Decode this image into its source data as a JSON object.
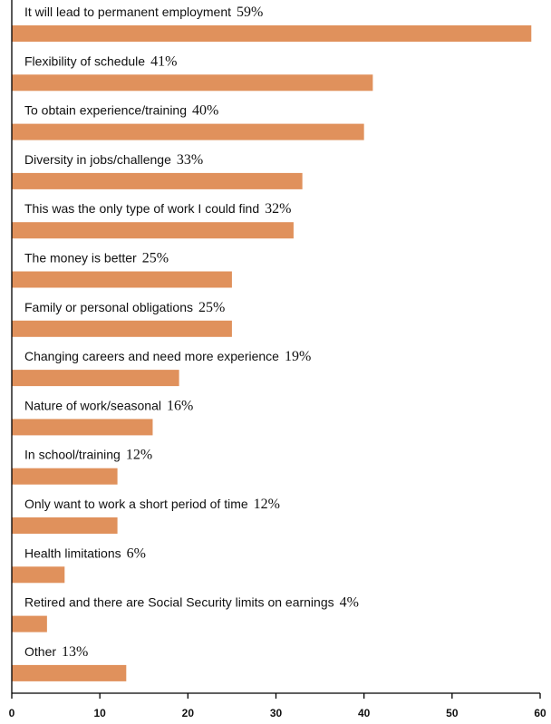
{
  "chart_data": {
    "type": "bar",
    "orientation": "horizontal",
    "categories": [
      "It will lead to permanent employment",
      "Flexibility of schedule",
      "To obtain experience/training",
      "Diversity in jobs/challenge",
      "This was the only type of work I could find",
      "The money is better",
      "Family or personal obligations",
      "Changing careers and need more experience",
      "Nature of work/seasonal",
      "In school/training",
      "Only want to work a short period of time",
      "Health limitations",
      "Retired and there are Social Security limits on earnings",
      "Other"
    ],
    "values": [
      59,
      41,
      40,
      33,
      32,
      25,
      25,
      19,
      16,
      12,
      12,
      6,
      4,
      13
    ],
    "value_labels": [
      "59%",
      "41%",
      "40%",
      "33%",
      "32%",
      "25%",
      "25%",
      "19%",
      "16%",
      "12%",
      "12%",
      "6%",
      "4%",
      "13%"
    ],
    "title": "",
    "xlabel": "",
    "ylabel": "",
    "xlim": [
      0,
      60
    ],
    "xticks": [
      0,
      10,
      20,
      30,
      40,
      50,
      60
    ],
    "grid": false,
    "bar_color": "#e0915c",
    "axis_color": "#000000"
  }
}
